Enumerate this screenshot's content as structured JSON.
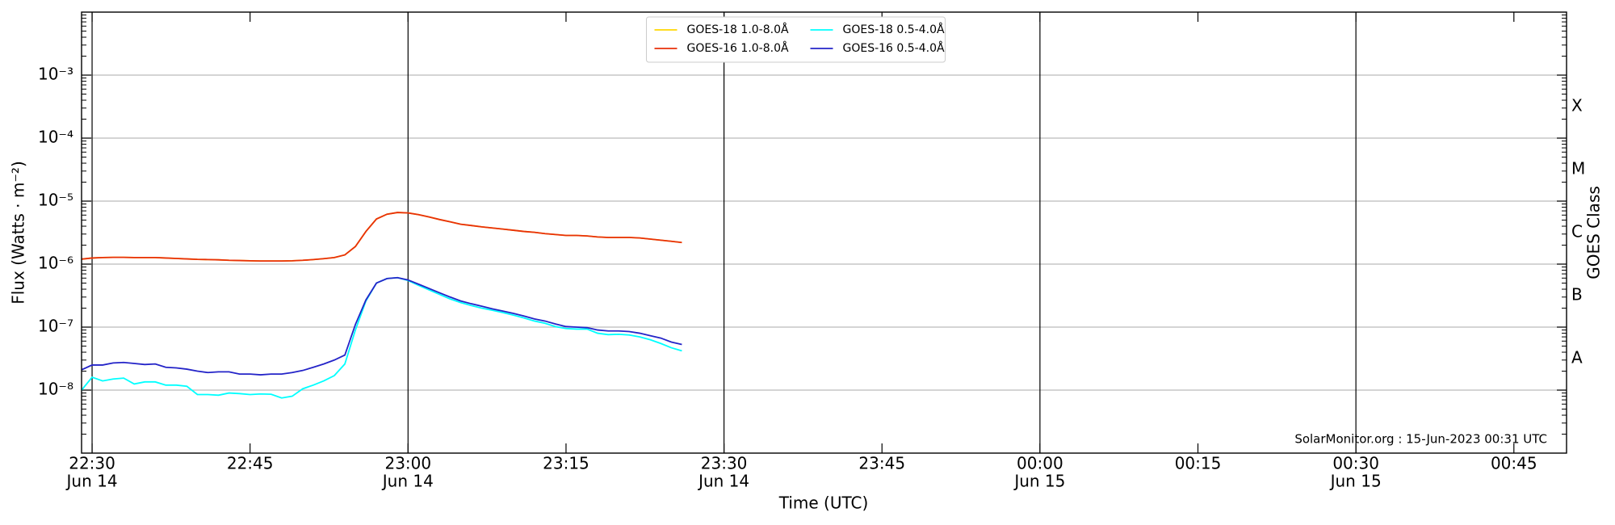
{
  "chart_data": {
    "type": "line",
    "xlabel": "Time (UTC)",
    "ylabel": "Flux (Watts · m⁻²)",
    "y2label": "GOES Class",
    "annotation": "SolarMonitor.org : 15-Jun-2023 00:31 UTC",
    "yscale": "log",
    "grid": true,
    "legend": "upper center",
    "x": [
      "Jun 14 22:29",
      "Jun 14 22:30",
      "Jun 14 22:31",
      "Jun 14 22:32",
      "Jun 14 22:33",
      "Jun 14 22:34",
      "Jun 14 22:35",
      "Jun 14 22:36",
      "Jun 14 22:37",
      "Jun 14 22:38",
      "Jun 14 22:39",
      "Jun 14 22:40",
      "Jun 14 22:41",
      "Jun 14 22:42",
      "Jun 14 22:43",
      "Jun 14 22:44",
      "Jun 14 22:45",
      "Jun 14 22:46",
      "Jun 14 22:47",
      "Jun 14 22:48",
      "Jun 14 22:49",
      "Jun 14 22:50",
      "Jun 14 22:51",
      "Jun 14 22:52",
      "Jun 14 22:53",
      "Jun 14 22:54",
      "Jun 14 22:55",
      "Jun 14 22:56",
      "Jun 14 22:57",
      "Jun 14 22:58",
      "Jun 14 22:59",
      "Jun 14 23:00",
      "Jun 14 23:01",
      "Jun 14 23:02",
      "Jun 14 23:03",
      "Jun 14 23:04",
      "Jun 14 23:05",
      "Jun 14 23:06",
      "Jun 14 23:07",
      "Jun 14 23:08",
      "Jun 14 23:09",
      "Jun 14 23:10",
      "Jun 14 23:11",
      "Jun 14 23:12",
      "Jun 14 23:13",
      "Jun 14 23:14",
      "Jun 14 23:15",
      "Jun 14 23:16",
      "Jun 14 23:17",
      "Jun 14 23:18",
      "Jun 14 23:19",
      "Jun 14 23:20",
      "Jun 14 23:21",
      "Jun 14 23:22",
      "Jun 14 23:23",
      "Jun 14 23:24",
      "Jun 14 23:25",
      "Jun 14 23:26"
    ],
    "series": [
      {
        "name": "GOES-18 1.0-8.0Å",
        "color": "#ffd700",
        "values": [
          1.2e-06,
          1.25e-06,
          1.27e-06,
          1.28e-06,
          1.28e-06,
          1.27e-06,
          1.27e-06,
          1.27e-06,
          1.25e-06,
          1.23e-06,
          1.21e-06,
          1.19e-06,
          1.18e-06,
          1.17e-06,
          1.15e-06,
          1.14e-06,
          1.13e-06,
          1.12e-06,
          1.12e-06,
          1.12e-06,
          1.13e-06,
          1.15e-06,
          1.18e-06,
          1.22e-06,
          1.27e-06,
          1.4e-06,
          1.9e-06,
          3.3e-06,
          5.2e-06,
          6.2e-06,
          6.6e-06,
          6.5e-06,
          6.1e-06,
          5.6e-06,
          5.1e-06,
          4.7e-06,
          4.3e-06,
          4.1e-06,
          3.9e-06,
          3.75e-06,
          3.6e-06,
          3.45e-06,
          3.3e-06,
          3.2e-06,
          3.05e-06,
          2.95e-06,
          2.85e-06,
          2.85e-06,
          2.8e-06,
          2.7e-06,
          2.65e-06,
          2.65e-06,
          2.65e-06,
          2.6e-06,
          2.5e-06,
          2.4e-06,
          2.3e-06,
          2.2e-06
        ]
      },
      {
        "name": "GOES-16 1.0-8.0Å",
        "color": "#e8300a",
        "values": [
          1.2e-06,
          1.25e-06,
          1.27e-06,
          1.28e-06,
          1.28e-06,
          1.27e-06,
          1.27e-06,
          1.27e-06,
          1.25e-06,
          1.23e-06,
          1.21e-06,
          1.19e-06,
          1.18e-06,
          1.17e-06,
          1.15e-06,
          1.14e-06,
          1.13e-06,
          1.12e-06,
          1.12e-06,
          1.12e-06,
          1.13e-06,
          1.15e-06,
          1.18e-06,
          1.22e-06,
          1.27e-06,
          1.4e-06,
          1.9e-06,
          3.3e-06,
          5.2e-06,
          6.2e-06,
          6.6e-06,
          6.5e-06,
          6.1e-06,
          5.6e-06,
          5.1e-06,
          4.7e-06,
          4.3e-06,
          4.1e-06,
          3.9e-06,
          3.75e-06,
          3.6e-06,
          3.45e-06,
          3.3e-06,
          3.2e-06,
          3.05e-06,
          2.95e-06,
          2.85e-06,
          2.85e-06,
          2.8e-06,
          2.7e-06,
          2.65e-06,
          2.65e-06,
          2.65e-06,
          2.6e-06,
          2.5e-06,
          2.4e-06,
          2.3e-06,
          2.2e-06
        ]
      },
      {
        "name": "GOES-18 0.5-4.0Å",
        "color": "#00ffff",
        "values": [
          1e-08,
          1.6e-08,
          1.4e-08,
          1.5e-08,
          1.55e-08,
          1.25e-08,
          1.35e-08,
          1.35e-08,
          1.2e-08,
          1.2e-08,
          1.15e-08,
          8.5e-09,
          8.5e-09,
          8.3e-09,
          9e-09,
          8.8e-09,
          8.5e-09,
          8.7e-09,
          8.6e-09,
          7.5e-09,
          8e-09,
          1.05e-08,
          1.2e-08,
          1.4e-08,
          1.7e-08,
          2.6e-08,
          9e-08,
          2.6e-07,
          5e-07,
          5.9e-07,
          6.1e-07,
          5.5e-07,
          4.6e-07,
          3.9e-07,
          3.3e-07,
          2.8e-07,
          2.45e-07,
          2.2e-07,
          2e-07,
          1.85e-07,
          1.7e-07,
          1.55e-07,
          1.4e-07,
          1.25e-07,
          1.15e-07,
          1.02e-07,
          9.5e-08,
          9.3e-08,
          9.3e-08,
          8e-08,
          7.6e-08,
          7.7e-08,
          7.5e-08,
          7e-08,
          6.3e-08,
          5.5e-08,
          4.7e-08,
          4.2e-08
        ]
      },
      {
        "name": "GOES-16 0.5-4.0Å",
        "color": "#2424c8",
        "values": [
          2.1e-08,
          2.5e-08,
          2.5e-08,
          2.7e-08,
          2.75e-08,
          2.65e-08,
          2.55e-08,
          2.6e-08,
          2.3e-08,
          2.25e-08,
          2.15e-08,
          2e-08,
          1.9e-08,
          1.95e-08,
          1.95e-08,
          1.8e-08,
          1.8e-08,
          1.75e-08,
          1.8e-08,
          1.8e-08,
          1.9e-08,
          2.05e-08,
          2.3e-08,
          2.6e-08,
          3e-08,
          3.6e-08,
          1.1e-07,
          2.7e-07,
          5e-07,
          5.9e-07,
          6.1e-07,
          5.6e-07,
          4.8e-07,
          4.1e-07,
          3.5e-07,
          3e-07,
          2.6e-07,
          2.35e-07,
          2.15e-07,
          1.95e-07,
          1.8e-07,
          1.65e-07,
          1.5e-07,
          1.35e-07,
          1.25e-07,
          1.12e-07,
          1.02e-07,
          1e-07,
          9.8e-08,
          9e-08,
          8.7e-08,
          8.7e-08,
          8.5e-08,
          8e-08,
          7.3e-08,
          6.7e-08,
          5.8e-08,
          5.3e-08
        ]
      }
    ],
    "xlim": [
      "Jun 14 22:29",
      "Jun 15 00:50"
    ],
    "xticks": [
      {
        "value": "Jun 14 22:30",
        "label": [
          "22:30",
          "Jun 14"
        ]
      },
      {
        "value": "Jun 14 22:45",
        "label": "22:45"
      },
      {
        "value": "Jun 14 23:00",
        "label": [
          "23:00",
          "Jun 14"
        ]
      },
      {
        "value": "Jun 14 23:15",
        "label": "23:15"
      },
      {
        "value": "Jun 14 23:30",
        "label": [
          "23:30",
          "Jun 14"
        ]
      },
      {
        "value": "Jun 14 23:45",
        "label": "23:45"
      },
      {
        "value": "Jun 15 00:00",
        "label": [
          "00:00",
          "Jun 15"
        ]
      },
      {
        "value": "Jun 15 00:15",
        "label": "00:15"
      },
      {
        "value": "Jun 15 00:30",
        "label": [
          "00:30",
          "Jun 15"
        ]
      },
      {
        "value": "Jun 15 00:45",
        "label": "00:45"
      }
    ],
    "ylim": [
      1e-09,
      0.01
    ],
    "yticks": [
      {
        "value": 1e-08,
        "label": "10⁻⁸"
      },
      {
        "value": 1e-07,
        "label": "10⁻⁷"
      },
      {
        "value": 1e-06,
        "label": "10⁻⁶"
      },
      {
        "value": 1e-05,
        "label": "10⁻⁵"
      },
      {
        "value": 0.0001,
        "label": "10⁻⁴"
      },
      {
        "value": 0.001,
        "label": "10⁻³"
      }
    ],
    "y2lim": [
      1e-09,
      0.01
    ],
    "y2ticks": [
      {
        "value": 3.16e-08,
        "label": "A"
      },
      {
        "value": 3.16e-07,
        "label": "B"
      },
      {
        "value": 3.16e-06,
        "label": "C"
      },
      {
        "value": 3.16e-05,
        "label": "M"
      },
      {
        "value": 0.000316,
        "label": "X"
      }
    ]
  }
}
